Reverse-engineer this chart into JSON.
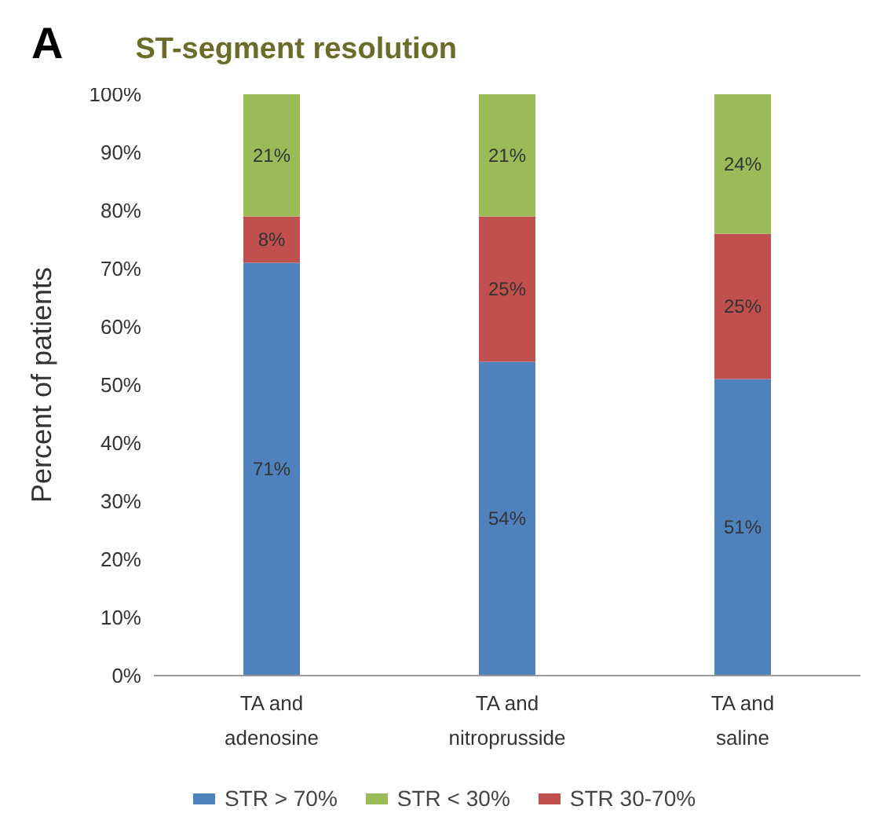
{
  "chart_data": {
    "type": "bar",
    "title": "ST-segment resolution",
    "annotations": [
      "A"
    ],
    "ylabel": "Percent of patients",
    "categories": [
      "TA and adenosine",
      "TA and nitroprusside",
      "TA and saline"
    ],
    "stacked": true,
    "ylim": [
      0,
      100
    ],
    "yticks": [
      {
        "value": 0,
        "label": "0%"
      },
      {
        "value": 10,
        "label": "10%"
      },
      {
        "value": 20,
        "label": "20%"
      },
      {
        "value": 30,
        "label": "30%"
      },
      {
        "value": 40,
        "label": "40%"
      },
      {
        "value": 50,
        "label": "50%"
      },
      {
        "value": 60,
        "label": "60%"
      },
      {
        "value": 70,
        "label": "70%"
      },
      {
        "value": 80,
        "label": "80%"
      },
      {
        "value": 90,
        "label": "90%"
      },
      {
        "value": 100,
        "label": "100%"
      }
    ],
    "grid": false,
    "legend": "bottom",
    "series": [
      {
        "name": "STR > 70%",
        "color": "#4f81bd",
        "values": [
          71,
          54,
          51
        ],
        "value_labels": [
          "71%",
          "54%",
          "51%"
        ]
      },
      {
        "name": "STR 30-70%",
        "color": "#c0504d",
        "values": [
          8,
          25,
          25
        ],
        "value_labels": [
          "8%",
          "25%",
          "25%"
        ]
      },
      {
        "name": "STR < 30%",
        "color": "#9bbb59",
        "values": [
          21,
          21,
          24
        ],
        "value_labels": [
          "21%",
          "21%",
          "24%"
        ]
      }
    ]
  }
}
